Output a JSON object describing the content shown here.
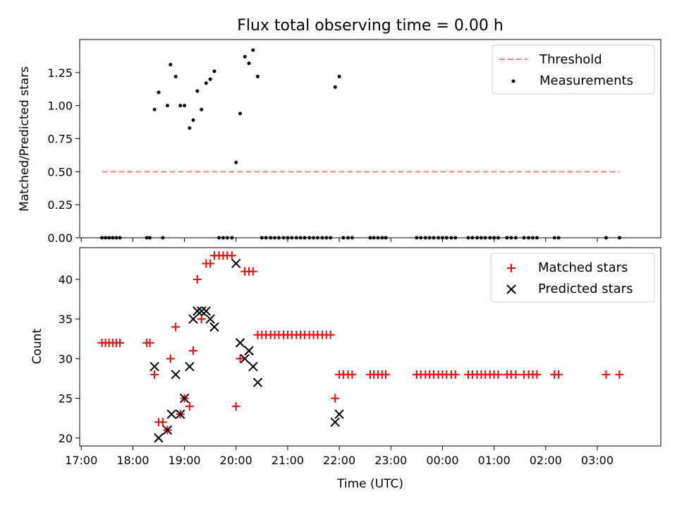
{
  "chart_data": [
    {
      "type": "scatter",
      "title": "Flux total observing time = 0.00 h",
      "xlabel": "",
      "ylabel": "Matched/Predicted stars",
      "ylim": [
        0,
        1.5
      ],
      "yticks": [
        0,
        0.25,
        0.5,
        0.75,
        1.0,
        1.25
      ],
      "yticklabels": [
        "0.00",
        "0.25",
        "0.50",
        "0.75",
        "1.00",
        "1.25"
      ],
      "legend_position": "top-right",
      "threshold": {
        "name": "Threshold",
        "value": 0.5,
        "x_start": 17.4,
        "x_end": 27.43,
        "color": "#ff7f7f"
      },
      "series": [
        {
          "name": "Measurements",
          "color": "#000000",
          "points": [
            [
              17.4,
              0
            ],
            [
              17.47,
              0
            ],
            [
              17.54,
              0
            ],
            [
              17.61,
              0
            ],
            [
              17.68,
              0
            ],
            [
              17.75,
              0
            ],
            [
              18.27,
              0
            ],
            [
              18.33,
              0
            ],
            [
              18.42,
              0.97
            ],
            [
              18.5,
              1.1
            ],
            [
              18.58,
              0
            ],
            [
              18.67,
              1.0
            ],
            [
              18.73,
              1.31
            ],
            [
              18.83,
              1.22
            ],
            [
              18.92,
              1.0
            ],
            [
              19.0,
              1.0
            ],
            [
              19.1,
              0.83
            ],
            [
              19.17,
              0.89
            ],
            [
              19.25,
              1.11
            ],
            [
              19.33,
              0.97
            ],
            [
              19.42,
              1.17
            ],
            [
              19.5,
              1.2
            ],
            [
              19.58,
              1.26
            ],
            [
              19.67,
              0
            ],
            [
              19.75,
              0
            ],
            [
              19.83,
              0
            ],
            [
              19.92,
              0
            ],
            [
              20.0,
              0.57
            ],
            [
              20.08,
              0.94
            ],
            [
              20.17,
              1.37
            ],
            [
              20.25,
              1.32
            ],
            [
              20.33,
              1.42
            ],
            [
              20.42,
              1.22
            ],
            [
              20.5,
              0
            ],
            [
              20.58,
              0
            ],
            [
              20.67,
              0
            ],
            [
              20.75,
              0
            ],
            [
              20.83,
              0
            ],
            [
              20.92,
              0
            ],
            [
              21.0,
              0
            ],
            [
              21.08,
              0
            ],
            [
              21.17,
              0
            ],
            [
              21.25,
              0
            ],
            [
              21.33,
              0
            ],
            [
              21.42,
              0
            ],
            [
              21.5,
              0
            ],
            [
              21.58,
              0
            ],
            [
              21.67,
              0
            ],
            [
              21.75,
              0
            ],
            [
              21.83,
              0
            ],
            [
              21.92,
              1.14
            ],
            [
              22.0,
              1.22
            ],
            [
              22.08,
              0
            ],
            [
              22.17,
              0
            ],
            [
              22.25,
              0
            ],
            [
              22.6,
              0
            ],
            [
              22.67,
              0
            ],
            [
              22.75,
              0
            ],
            [
              22.83,
              0
            ],
            [
              22.9,
              0
            ],
            [
              23.5,
              0
            ],
            [
              23.58,
              0
            ],
            [
              23.67,
              0
            ],
            [
              23.75,
              0
            ],
            [
              23.83,
              0
            ],
            [
              23.92,
              0
            ],
            [
              24.0,
              0
            ],
            [
              24.08,
              0
            ],
            [
              24.17,
              0
            ],
            [
              24.25,
              0
            ],
            [
              24.5,
              0
            ],
            [
              24.58,
              0
            ],
            [
              24.67,
              0
            ],
            [
              24.75,
              0
            ],
            [
              24.83,
              0
            ],
            [
              24.92,
              0
            ],
            [
              25.0,
              0
            ],
            [
              25.08,
              0
            ],
            [
              25.25,
              0
            ],
            [
              25.33,
              0
            ],
            [
              25.42,
              0
            ],
            [
              25.58,
              0
            ],
            [
              25.67,
              0
            ],
            [
              25.75,
              0
            ],
            [
              25.83,
              0
            ],
            [
              26.17,
              0
            ],
            [
              26.25,
              0
            ],
            [
              27.17,
              0
            ],
            [
              27.43,
              0
            ]
          ]
        }
      ]
    },
    {
      "type": "scatter",
      "title": "",
      "xlabel": "Time (UTC)",
      "ylabel": "Count",
      "ylim": [
        19,
        44
      ],
      "yticks": [
        20,
        25,
        30,
        35,
        40
      ],
      "yticklabels": [
        "20",
        "25",
        "30",
        "35",
        "40"
      ],
      "xlim": [
        16.97,
        28.23
      ],
      "xticks": [
        17,
        18,
        19,
        20,
        21,
        22,
        23,
        24,
        25,
        26,
        27
      ],
      "xticklabels": [
        "17:00",
        "18:00",
        "19:00",
        "20:00",
        "21:00",
        "22:00",
        "23:00",
        "00:00",
        "01:00",
        "02:00",
        "03:00"
      ],
      "legend_position": "top-right",
      "series": [
        {
          "name": "Matched stars",
          "marker": "plus",
          "color": "#ff0000",
          "points": [
            [
              17.4,
              32
            ],
            [
              17.47,
              32
            ],
            [
              17.54,
              32
            ],
            [
              17.61,
              32
            ],
            [
              17.68,
              32
            ],
            [
              17.75,
              32
            ],
            [
              18.27,
              32
            ],
            [
              18.33,
              32
            ],
            [
              18.42,
              28
            ],
            [
              18.5,
              22
            ],
            [
              18.58,
              22
            ],
            [
              18.67,
              21
            ],
            [
              18.73,
              30
            ],
            [
              18.83,
              34
            ],
            [
              18.92,
              23
            ],
            [
              19.0,
              25
            ],
            [
              19.1,
              24
            ],
            [
              19.17,
              31
            ],
            [
              19.25,
              40
            ],
            [
              19.33,
              35
            ],
            [
              19.42,
              42
            ],
            [
              19.5,
              42
            ],
            [
              19.58,
              43
            ],
            [
              19.67,
              43
            ],
            [
              19.75,
              43
            ],
            [
              19.83,
              43
            ],
            [
              19.92,
              43
            ],
            [
              20.0,
              24
            ],
            [
              20.08,
              30
            ],
            [
              20.17,
              41
            ],
            [
              20.25,
              41
            ],
            [
              20.33,
              41
            ],
            [
              20.42,
              33
            ],
            [
              20.5,
              33
            ],
            [
              20.58,
              33
            ],
            [
              20.67,
              33
            ],
            [
              20.75,
              33
            ],
            [
              20.83,
              33
            ],
            [
              20.92,
              33
            ],
            [
              21.0,
              33
            ],
            [
              21.08,
              33
            ],
            [
              21.17,
              33
            ],
            [
              21.25,
              33
            ],
            [
              21.33,
              33
            ],
            [
              21.42,
              33
            ],
            [
              21.5,
              33
            ],
            [
              21.58,
              33
            ],
            [
              21.67,
              33
            ],
            [
              21.75,
              33
            ],
            [
              21.83,
              33
            ],
            [
              21.92,
              25
            ],
            [
              22.0,
              28
            ],
            [
              22.08,
              28
            ],
            [
              22.17,
              28
            ],
            [
              22.25,
              28
            ],
            [
              22.6,
              28
            ],
            [
              22.67,
              28
            ],
            [
              22.75,
              28
            ],
            [
              22.83,
              28
            ],
            [
              22.9,
              28
            ],
            [
              23.5,
              28
            ],
            [
              23.58,
              28
            ],
            [
              23.67,
              28
            ],
            [
              23.75,
              28
            ],
            [
              23.83,
              28
            ],
            [
              23.92,
              28
            ],
            [
              24.0,
              28
            ],
            [
              24.08,
              28
            ],
            [
              24.17,
              28
            ],
            [
              24.25,
              28
            ],
            [
              24.5,
              28
            ],
            [
              24.58,
              28
            ],
            [
              24.67,
              28
            ],
            [
              24.75,
              28
            ],
            [
              24.83,
              28
            ],
            [
              24.92,
              28
            ],
            [
              25.0,
              28
            ],
            [
              25.08,
              28
            ],
            [
              25.25,
              28
            ],
            [
              25.33,
              28
            ],
            [
              25.42,
              28
            ],
            [
              25.58,
              28
            ],
            [
              25.67,
              28
            ],
            [
              25.75,
              28
            ],
            [
              25.83,
              28
            ],
            [
              26.17,
              28
            ],
            [
              26.25,
              28
            ],
            [
              27.17,
              28
            ],
            [
              27.43,
              28
            ]
          ]
        },
        {
          "name": "Predicted stars",
          "marker": "x",
          "color": "#000000",
          "points": [
            [
              18.42,
              29
            ],
            [
              18.5,
              20
            ],
            [
              18.67,
              21
            ],
            [
              18.75,
              23
            ],
            [
              18.83,
              28
            ],
            [
              18.92,
              23
            ],
            [
              19.0,
              25
            ],
            [
              19.1,
              29
            ],
            [
              19.17,
              35
            ],
            [
              19.25,
              36
            ],
            [
              19.33,
              36
            ],
            [
              19.42,
              36
            ],
            [
              19.5,
              35
            ],
            [
              19.58,
              34
            ],
            [
              20.0,
              42
            ],
            [
              20.08,
              32
            ],
            [
              20.17,
              30
            ],
            [
              20.25,
              31
            ],
            [
              20.33,
              29
            ],
            [
              20.42,
              27
            ],
            [
              21.92,
              22
            ],
            [
              22.0,
              23
            ]
          ]
        }
      ]
    }
  ]
}
